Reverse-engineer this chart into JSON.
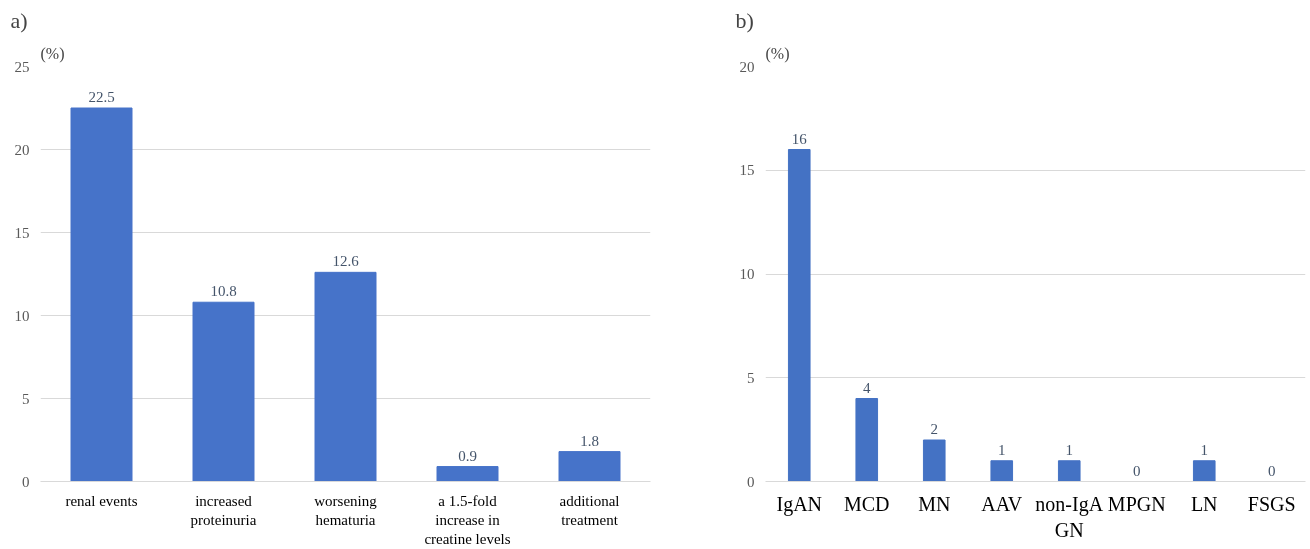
{
  "chart_data": [
    {
      "type": "bar",
      "title": "a)",
      "ylabel": "(%)",
      "categories": [
        "renal events",
        "increased proteinuria",
        "worsening hematuria",
        "a 1.5-fold increase in creatine levels",
        "additional treatment"
      ],
      "values": [
        22.5,
        10.8,
        12.6,
        0.9,
        1.8
      ],
      "color": "#4673c9",
      "ylim": [
        0,
        25
      ],
      "yticks": [
        0,
        5,
        10,
        15,
        20,
        25
      ],
      "grid": "y",
      "data_labels": true
    },
    {
      "type": "bar",
      "title": "b)",
      "ylabel": "(%)",
      "categories": [
        "IgAN",
        "MCD",
        "MN",
        "AAV",
        "non-IgA GN",
        "MPGN",
        "LN",
        "FSGS"
      ],
      "values": [
        16,
        4,
        2,
        1,
        1,
        0,
        1,
        0
      ],
      "color": "#4472c4",
      "ylim": [
        0,
        20
      ],
      "yticks": [
        0,
        5,
        10,
        15,
        20
      ],
      "grid": "y",
      "data_labels": true
    }
  ]
}
